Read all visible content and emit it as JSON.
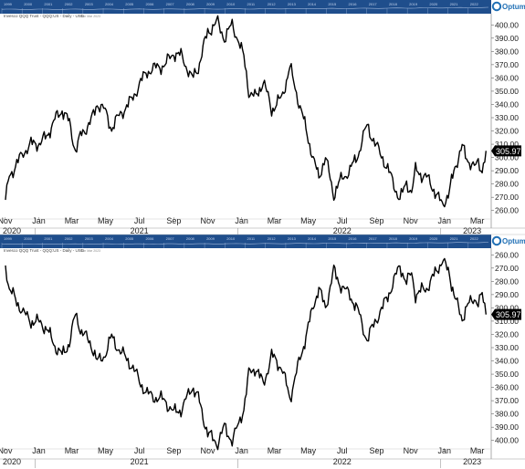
{
  "brand": "Optuma",
  "colors": {
    "band": "#1f4e8c",
    "band_text": "#c9d7ee",
    "line": "#000000",
    "tag_bg": "#000000",
    "tag_text": "#ffffff"
  },
  "band_years": [
    "1999",
    "2000",
    "2001",
    "2002",
    "2003",
    "2004",
    "2005",
    "2006",
    "2007",
    "2008",
    "2009",
    "2010",
    "2011",
    "2012",
    "2013",
    "2014",
    "2015",
    "2016",
    "2017",
    "2018",
    "2019",
    "2020",
    "2021",
    "2022"
  ],
  "chart_data": [
    {
      "type": "line",
      "title": "Invesco QQQ Trust - QQQ:US - Daily - USD",
      "note": "Sun Mar 2023",
      "axis_inverted": false,
      "ylim": [
        255,
        405
      ],
      "yticks": [
        260,
        270,
        280,
        290,
        300,
        310,
        320,
        330,
        340,
        350,
        360,
        370,
        380,
        390,
        400
      ],
      "ytick_labels": [
        "260.00",
        "270.00",
        "280.00",
        "290.00",
        "300.00",
        "310.00",
        "320.00",
        "330.00",
        "340.00",
        "350.00",
        "360.00",
        "370.00",
        "380.00",
        "390.00",
        "400.00"
      ],
      "last_value_label": "305.97",
      "x_month_labels": [
        "Nov",
        "Jan",
        "Mar",
        "May",
        "Jul",
        "Sep",
        "Nov",
        "Jan",
        "Mar",
        "May",
        "Jul",
        "Sep",
        "Nov",
        "Jan",
        "Mar"
      ],
      "x_year_labels": [
        "2020",
        "2021",
        "2022",
        "2023"
      ],
      "series": [
        {
          "x": [
            "2020-11-02",
            "2020-11-09",
            "2020-11-20",
            "2020-12-04",
            "2020-12-18",
            "2021-01-04",
            "2021-01-15",
            "2021-02-01",
            "2021-02-12",
            "2021-02-25",
            "2021-03-08",
            "2021-03-19",
            "2021-04-05",
            "2021-04-16",
            "2021-04-30",
            "2021-05-12",
            "2021-05-28",
            "2021-06-15",
            "2021-07-01",
            "2021-07-15",
            "2021-08-02",
            "2021-08-16",
            "2021-09-01",
            "2021-09-16",
            "2021-10-04",
            "2021-10-15",
            "2021-11-01",
            "2021-11-19",
            "2021-12-01",
            "2021-12-15",
            "2021-12-27",
            "2022-01-05",
            "2022-01-14",
            "2022-01-27",
            "2022-02-09",
            "2022-02-24",
            "2022-03-14",
            "2022-03-29",
            "2022-04-12",
            "2022-04-29",
            "2022-05-12",
            "2022-05-20",
            "2022-06-01",
            "2022-06-16",
            "2022-07-01",
            "2022-07-15",
            "2022-08-01",
            "2022-08-15",
            "2022-08-29",
            "2022-09-12",
            "2022-09-30",
            "2022-10-13",
            "2022-10-25",
            "2022-11-03",
            "2022-11-10",
            "2022-11-30",
            "2022-12-13",
            "2022-12-28",
            "2023-01-10",
            "2023-01-20",
            "2023-02-02",
            "2023-02-10",
            "2023-02-24",
            "2023-03-03",
            "2023-03-10",
            "2023-03-17"
          ],
          "values": [
            268,
            287,
            293,
            304,
            310,
            311,
            316,
            330,
            336,
            326,
            305,
            318,
            327,
            341,
            335,
            322,
            333,
            342,
            355,
            365,
            368,
            370,
            379,
            376,
            359,
            368,
            395,
            402,
            390,
            400,
            388,
            375,
            350,
            345,
            358,
            336,
            345,
            368,
            345,
            318,
            295,
            286,
            300,
            272,
            285,
            290,
            305,
            325,
            310,
            300,
            282,
            268,
            281,
            274,
            290,
            285,
            276,
            264,
            274,
            293,
            308,
            300,
            292,
            296,
            291,
            305
          ]
        }
      ]
    },
    {
      "type": "line",
      "title": "Invesco QQQ Trust - QQQ:US - Daily - USD",
      "note": "Sun Mar 2023",
      "axis_inverted": true,
      "ylim": [
        405,
        255
      ],
      "yticks": [
        260,
        270,
        280,
        290,
        300,
        310,
        320,
        330,
        340,
        350,
        360,
        370,
        380,
        390,
        400
      ],
      "ytick_labels": [
        "260.00",
        "270.00",
        "280.00",
        "290.00",
        "300.00",
        "310.00",
        "320.00",
        "330.00",
        "340.00",
        "350.00",
        "360.00",
        "370.00",
        "380.00",
        "390.00",
        "400.00"
      ],
      "last_value_label": "305.97",
      "x_month_labels": [
        "Nov",
        "Jan",
        "Mar",
        "May",
        "Jul",
        "Sep",
        "Nov",
        "Jan",
        "Mar",
        "May",
        "Jul",
        "Sep",
        "Nov",
        "Jan",
        "Mar"
      ],
      "x_year_labels": [
        "2020",
        "2021",
        "2022",
        "2023"
      ],
      "series": [
        {
          "x": [
            "2020-11-02",
            "2020-11-09",
            "2020-11-20",
            "2020-12-04",
            "2020-12-18",
            "2021-01-04",
            "2021-01-15",
            "2021-02-01",
            "2021-02-12",
            "2021-02-25",
            "2021-03-08",
            "2021-03-19",
            "2021-04-05",
            "2021-04-16",
            "2021-04-30",
            "2021-05-12",
            "2021-05-28",
            "2021-06-15",
            "2021-07-01",
            "2021-07-15",
            "2021-08-02",
            "2021-08-16",
            "2021-09-01",
            "2021-09-16",
            "2021-10-04",
            "2021-10-15",
            "2021-11-01",
            "2021-11-19",
            "2021-12-01",
            "2021-12-15",
            "2021-12-27",
            "2022-01-05",
            "2022-01-14",
            "2022-01-27",
            "2022-02-09",
            "2022-02-24",
            "2022-03-14",
            "2022-03-29",
            "2022-04-12",
            "2022-04-29",
            "2022-05-12",
            "2022-05-20",
            "2022-06-01",
            "2022-06-16",
            "2022-07-01",
            "2022-07-15",
            "2022-08-01",
            "2022-08-15",
            "2022-08-29",
            "2022-09-12",
            "2022-09-30",
            "2022-10-13",
            "2022-10-25",
            "2022-11-03",
            "2022-11-10",
            "2022-11-30",
            "2022-12-13",
            "2022-12-28",
            "2023-01-10",
            "2023-01-20",
            "2023-02-02",
            "2023-02-10",
            "2023-02-24",
            "2023-03-03",
            "2023-03-10",
            "2023-03-17"
          ],
          "values": [
            268,
            287,
            293,
            304,
            310,
            311,
            316,
            330,
            336,
            326,
            305,
            318,
            327,
            341,
            335,
            322,
            333,
            342,
            355,
            365,
            368,
            370,
            379,
            376,
            359,
            368,
            395,
            402,
            390,
            400,
            388,
            375,
            350,
            345,
            358,
            336,
            345,
            368,
            345,
            318,
            295,
            286,
            300,
            272,
            285,
            290,
            305,
            325,
            310,
            300,
            282,
            268,
            281,
            274,
            290,
            285,
            276,
            264,
            274,
            293,
            308,
            300,
            292,
            296,
            291,
            305
          ]
        }
      ]
    }
  ]
}
